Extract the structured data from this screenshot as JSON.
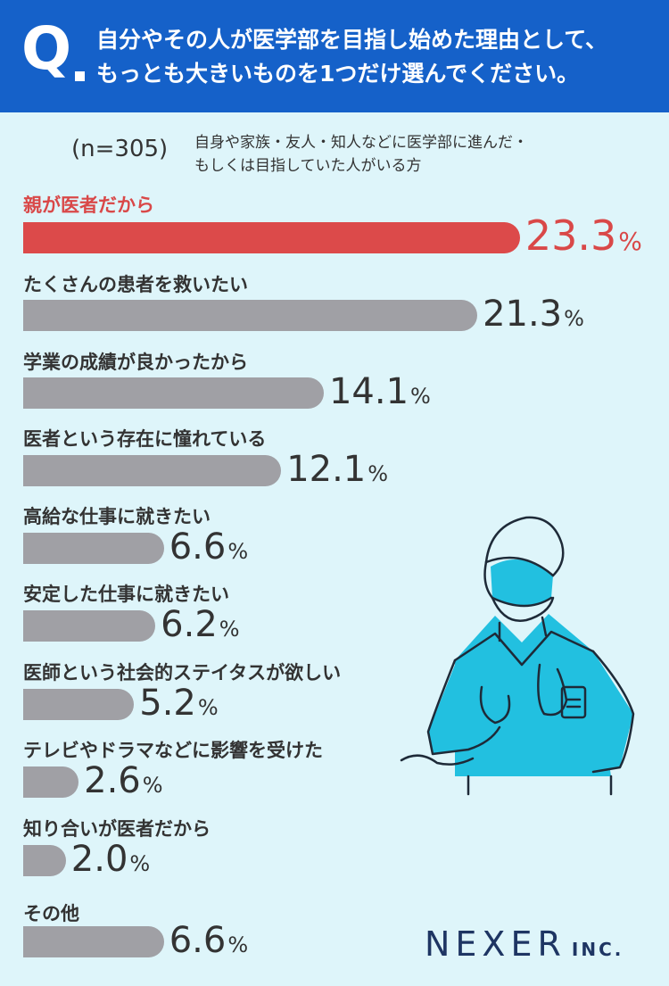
{
  "header": {
    "q_mark": "Q",
    "question_line1": "自分やその人が医学部を目指し始めた理由として、",
    "question_line2": "もっとも大きいものを1つだけ選んでください。"
  },
  "sample": {
    "n": "(n=305)",
    "desc_line1": "自身や家族・友人・知人などに医学部に進んだ・",
    "desc_line2": "もしくは目指していた人がいる方"
  },
  "colors": {
    "header_bg": "#1561c9",
    "background": "#def5fa",
    "highlight": "#dc4a4a",
    "bar": "#a0a0a5",
    "text": "#333333",
    "logo": "#1e3563"
  },
  "icons": [
    "doctor-illustration-icon"
  ],
  "chart_data": {
    "type": "bar",
    "orientation": "horizontal",
    "categories": [
      "親が医者だから",
      "たくさんの患者を救いたい",
      "学業の成績が良かったから",
      "医者という存在に憧れている",
      "高給な仕事に就きたい",
      "安定した仕事に就きたい",
      "医師という社会的ステイタスが欲しい",
      "テレビやドラマなどに影響を受けた",
      "知り合いが医者だから",
      "その他"
    ],
    "values": [
      23.3,
      21.3,
      14.1,
      12.1,
      6.6,
      6.2,
      5.2,
      2.6,
      2.0,
      6.6
    ],
    "value_labels": [
      "23.3",
      "21.3",
      "14.1",
      "12.1",
      "6.6",
      "6.2",
      "5.2",
      "2.6",
      "2.0",
      "6.6"
    ],
    "unit": "%",
    "highlight_index": 0
  },
  "logo": {
    "main": "NEXER",
    "suffix": "INC."
  }
}
